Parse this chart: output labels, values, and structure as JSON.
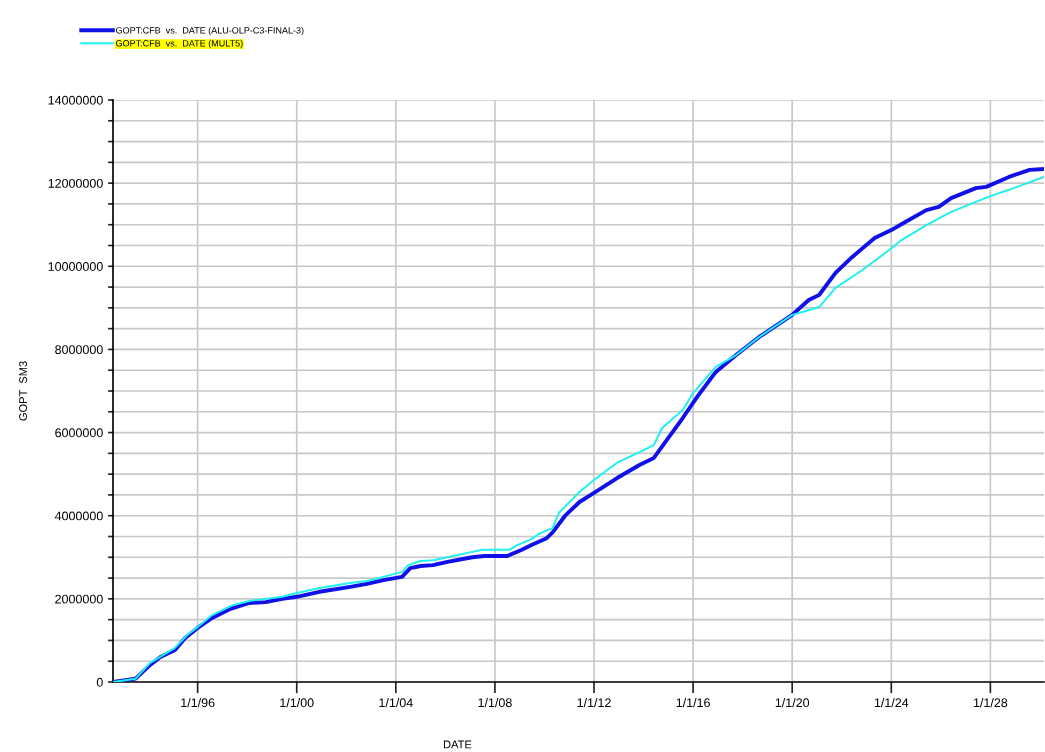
{
  "chart_data": {
    "type": "line",
    "xlabel": "DATE",
    "ylabel": "GOPT  SM3",
    "xlim": [
      "1992-08",
      "2030-03"
    ],
    "xticks": [
      {
        "value": "1996-01-01",
        "label": "1/1/96"
      },
      {
        "value": "2000-01-01",
        "label": "1/1/00"
      },
      {
        "value": "2004-01-01",
        "label": "1/1/04"
      },
      {
        "value": "2008-01-01",
        "label": "1/1/08"
      },
      {
        "value": "2012-01-01",
        "label": "1/1/12"
      },
      {
        "value": "2016-01-01",
        "label": "1/1/16"
      },
      {
        "value": "2020-01-01",
        "label": "1/1/20"
      },
      {
        "value": "2024-01-01",
        "label": "1/1/24"
      },
      {
        "value": "2028-01-01",
        "label": "1/1/28"
      }
    ],
    "ylim": [
      0,
      14000000
    ],
    "yticks": [
      0,
      {
        "value": 500000,
        "label": null
      },
      {
        "value": 1000000,
        "label": null
      },
      {
        "value": 1500000,
        "label": null
      },
      2000000,
      {
        "value": 2500000,
        "label": null
      },
      {
        "value": 3000000,
        "label": null
      },
      {
        "value": 3500000,
        "label": null
      },
      4000000,
      {
        "value": 4500000,
        "label": null
      },
      {
        "value": 5000000,
        "label": null
      },
      {
        "value": 5500000,
        "label": null
      },
      6000000,
      {
        "value": 6500000,
        "label": null
      },
      {
        "value": 7000000,
        "label": null
      },
      {
        "value": 7500000,
        "label": null
      },
      8000000,
      {
        "value": 8500000,
        "label": null
      },
      {
        "value": 9000000,
        "label": null
      },
      {
        "value": 9500000,
        "label": null
      },
      10000000,
      {
        "value": 10500000,
        "label": null
      },
      {
        "value": 11000000,
        "label": null
      },
      {
        "value": 11500000,
        "label": null
      },
      12000000,
      {
        "value": 12500000,
        "label": null
      },
      {
        "value": 13000000,
        "label": null
      },
      {
        "value": 13500000,
        "label": null
      },
      14000000
    ],
    "grid": true,
    "legend": "top left",
    "marker": "none",
    "line_style": "solid",
    "series": [
      {
        "name": "GOPT:CFB  vs.  DATE (ALU-OLP-C3-FINAL-3)",
        "color": "#1010e8",
        "x": [
          "1992-08",
          "1993-07",
          "1994-02",
          "1994-07",
          "1995-02",
          "1995-07",
          "1996-01",
          "1996-08",
          "1997-05",
          "1998-02",
          "1998-10",
          "1999-06",
          "2000-01",
          "2000-12",
          "2002-03",
          "2002-11",
          "2003-07",
          "2004-04",
          "2004-08",
          "2005-01",
          "2005-07",
          "2006-02",
          "2007-02",
          "2007-08",
          "2008-07",
          "2009-02",
          "2009-07",
          "2010-02",
          "2010-05",
          "2010-11",
          "2011-06",
          "2012-01",
          "2012-12",
          "2013-11",
          "2014-06",
          "2015-01",
          "2015-08",
          "2016-03",
          "2016-12",
          "2017-10",
          "2018-09",
          "2020-01",
          "2020-09",
          "2021-02",
          "2021-10",
          "2022-06",
          "2023-05",
          "2024-01",
          "2024-08",
          "2025-06",
          "2025-12",
          "2026-06",
          "2027-06",
          "2027-11",
          "2028-10",
          "2029-08",
          "2030-03"
        ],
        "values": [
          0,
          80000,
          410000,
          600000,
          770000,
          1060000,
          1300000,
          1540000,
          1760000,
          1900000,
          1920000,
          2000000,
          2050000,
          2170000,
          2290000,
          2360000,
          2450000,
          2530000,
          2740000,
          2790000,
          2810000,
          2890000,
          3000000,
          3030000,
          3030000,
          3180000,
          3300000,
          3460000,
          3600000,
          4000000,
          4330000,
          4550000,
          4900000,
          5220000,
          5390000,
          5870000,
          6350000,
          6860000,
          7460000,
          7870000,
          8300000,
          8830000,
          9190000,
          9310000,
          9840000,
          10220000,
          10680000,
          10870000,
          11070000,
          11350000,
          11430000,
          11640000,
          11880000,
          11910000,
          12150000,
          12320000,
          12340000
        ]
      },
      {
        "name": "GOPT:CFB  vs.  DATE (MULT5)",
        "color": "#20f0f0",
        "x": [
          "1992-08",
          "1993-07",
          "1994-02",
          "1995-02",
          "1995-08",
          "1996-01",
          "1996-08",
          "1997-06",
          "1998-02",
          "1998-10",
          "1999-06",
          "2000-01",
          "2000-12",
          "2002-03",
          "2002-11",
          "2003-07",
          "2004-04",
          "2004-07",
          "2005-01",
          "2005-07",
          "2006-02",
          "2007-02",
          "2007-07",
          "2008-08",
          "2008-12",
          "2009-06",
          "2009-11",
          "2010-05",
          "2010-08",
          "2011-06",
          "2012-01",
          "2012-12",
          "2013-11",
          "2014-06",
          "2014-10",
          "2015-08",
          "2016-01",
          "2016-12",
          "2017-10",
          "2018-09",
          "2020-01",
          "2020-06",
          "2021-02",
          "2021-10",
          "2022-11",
          "2023-12",
          "2024-06",
          "2025-06",
          "2026-06",
          "2027-12",
          "2028-10",
          "2030-03"
        ],
        "values": [
          0,
          80000,
          460000,
          820000,
          1130000,
          1320000,
          1610000,
          1850000,
          1950000,
          2000000,
          2050000,
          2140000,
          2260000,
          2380000,
          2430000,
          2530000,
          2650000,
          2810000,
          2910000,
          2930000,
          3000000,
          3130000,
          3180000,
          3180000,
          3300000,
          3420000,
          3580000,
          3700000,
          4070000,
          4570000,
          4860000,
          5270000,
          5530000,
          5700000,
          6110000,
          6540000,
          6950000,
          7580000,
          7870000,
          8300000,
          8830000,
          8900000,
          9020000,
          9480000,
          9910000,
          10390000,
          10630000,
          10990000,
          11310000,
          11670000,
          11840000,
          12150000
        ]
      }
    ]
  }
}
